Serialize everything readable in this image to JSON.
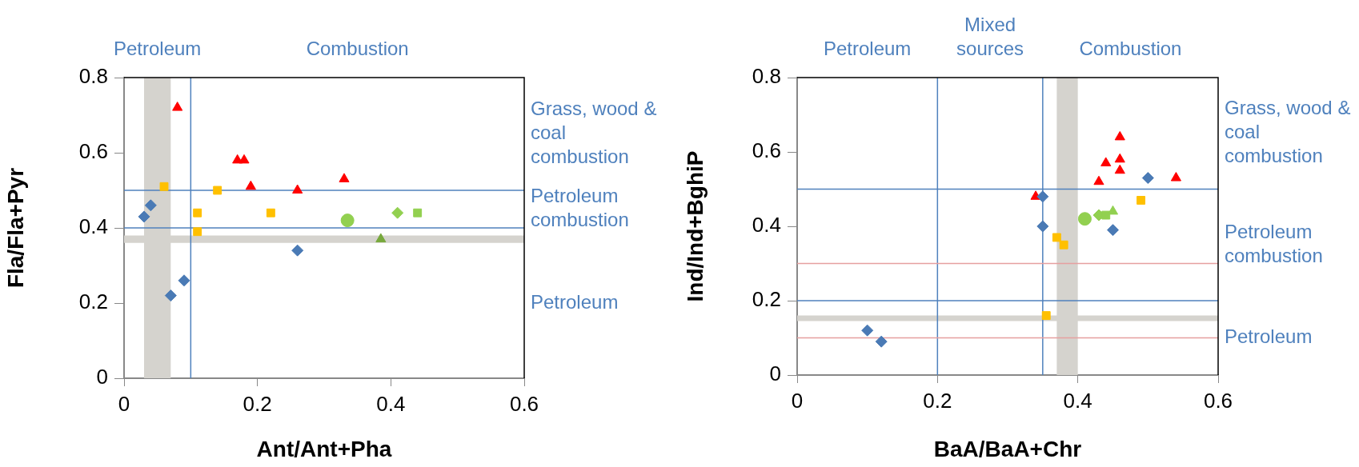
{
  "chart_data": [
    {
      "type": "scatter",
      "xlabel": "Ant/Ant+Pha",
      "ylabel": "Fla/Fla+Pyr",
      "xlim": [
        0,
        0.6
      ],
      "xticks": [
        0,
        0.2,
        0.4,
        0.6
      ],
      "ylim": [
        0,
        0.8
      ],
      "yticks": [
        0,
        0.2,
        0.4,
        0.6,
        0.8
      ],
      "grid": false,
      "legend": false,
      "series": [
        {
          "color": "#4a7ab5",
          "marker": "diamond",
          "x": [
            0.03,
            0.04,
            0.07,
            0.09,
            0.26
          ],
          "values": [
            0.43,
            0.46,
            0.22,
            0.26,
            0.34
          ]
        },
        {
          "color": "#ffc000",
          "marker": "square",
          "x": [
            0.06,
            0.14,
            0.11,
            0.11,
            0.22
          ],
          "values": [
            0.51,
            0.5,
            0.44,
            0.39,
            0.44
          ]
        },
        {
          "color": "#ff0000",
          "marker": "triangle",
          "x": [
            0.08,
            0.17,
            0.18,
            0.19,
            0.26,
            0.33
          ],
          "values": [
            0.72,
            0.58,
            0.58,
            0.51,
            0.5,
            0.53
          ]
        },
        {
          "color": "#92d050",
          "marker": "circle",
          "x": [
            0.335
          ],
          "values": [
            0.42
          ]
        },
        {
          "color": "#92d050",
          "marker": "diamond",
          "x": [
            0.41
          ],
          "values": [
            0.44
          ]
        },
        {
          "color": "#92d050",
          "marker": "square",
          "x": [
            0.44
          ],
          "values": [
            0.44
          ]
        },
        {
          "color": "#77a83c",
          "marker": "triangle",
          "x": [
            0.385
          ],
          "values": [
            0.37
          ]
        }
      ],
      "ref_lines": [
        {
          "axis": "x",
          "value": 0.1,
          "color": "#4f81bd"
        },
        {
          "axis": "y",
          "value": 0.5,
          "color": "#4f81bd"
        },
        {
          "axis": "y",
          "value": 0.4,
          "color": "#4f81bd"
        }
      ],
      "bands": [
        {
          "axis": "x",
          "from": 0.03,
          "to": 0.07,
          "color": "#d5d3ce"
        },
        {
          "axis": "y",
          "from": 0.36,
          "to": 0.38,
          "color": "#d5d3ce"
        }
      ],
      "annotations": [
        "Petroleum",
        "Combustion",
        "Grass, wood & coal combustion",
        "Petroleum combustion",
        "Petroleum"
      ]
    },
    {
      "type": "scatter",
      "xlabel": "BaA/BaA+Chr",
      "ylabel": "Ind/Ind+BghiP",
      "xlim": [
        0,
        0.6
      ],
      "xticks": [
        0,
        0.2,
        0.4,
        0.6
      ],
      "ylim": [
        0,
        0.8
      ],
      "yticks": [
        0,
        0.2,
        0.4,
        0.6,
        0.8
      ],
      "grid": false,
      "legend": false,
      "series": [
        {
          "color": "#4a7ab5",
          "marker": "diamond",
          "x": [
            0.1,
            0.12,
            0.35,
            0.35,
            0.45,
            0.5
          ],
          "values": [
            0.12,
            0.09,
            0.48,
            0.4,
            0.39,
            0.53
          ]
        },
        {
          "color": "#ffc000",
          "marker": "square",
          "x": [
            0.37,
            0.38,
            0.355,
            0.49
          ],
          "values": [
            0.37,
            0.35,
            0.16,
            0.47
          ]
        },
        {
          "color": "#ff0000",
          "marker": "triangle",
          "x": [
            0.34,
            0.43,
            0.44,
            0.46,
            0.46,
            0.46,
            0.54
          ],
          "values": [
            0.48,
            0.52,
            0.57,
            0.64,
            0.58,
            0.55,
            0.53
          ]
        },
        {
          "color": "#92d050",
          "marker": "circle",
          "x": [
            0.41
          ],
          "values": [
            0.42
          ]
        },
        {
          "color": "#92d050",
          "marker": "triangle",
          "x": [
            0.45
          ],
          "values": [
            0.44
          ]
        },
        {
          "color": "#92d050",
          "marker": "square",
          "x": [
            0.44
          ],
          "values": [
            0.43
          ]
        },
        {
          "color": "#92d050",
          "marker": "diamond",
          "x": [
            0.43
          ],
          "values": [
            0.43
          ]
        }
      ],
      "ref_lines": [
        {
          "axis": "x",
          "value": 0.2,
          "color": "#4f81bd"
        },
        {
          "axis": "x",
          "value": 0.35,
          "color": "#4f81bd"
        },
        {
          "axis": "y",
          "value": 0.5,
          "color": "#4f81bd"
        },
        {
          "axis": "y",
          "value": 0.2,
          "color": "#4f81bd"
        },
        {
          "axis": "y",
          "value": 0.3,
          "color": "#e6a0a0"
        },
        {
          "axis": "y",
          "value": 0.1,
          "color": "#e6a0a0"
        }
      ],
      "bands": [
        {
          "axis": "x",
          "from": 0.37,
          "to": 0.4,
          "color": "#d5d3ce"
        },
        {
          "axis": "y",
          "from": 0.145,
          "to": 0.16,
          "color": "#d5d3ce"
        }
      ],
      "annotations": [
        "Petroleum",
        "Mixed sources",
        "Combustion",
        "Grass, wood & coal combustion",
        "Petroleum combustion",
        "Petroleum"
      ]
    }
  ]
}
